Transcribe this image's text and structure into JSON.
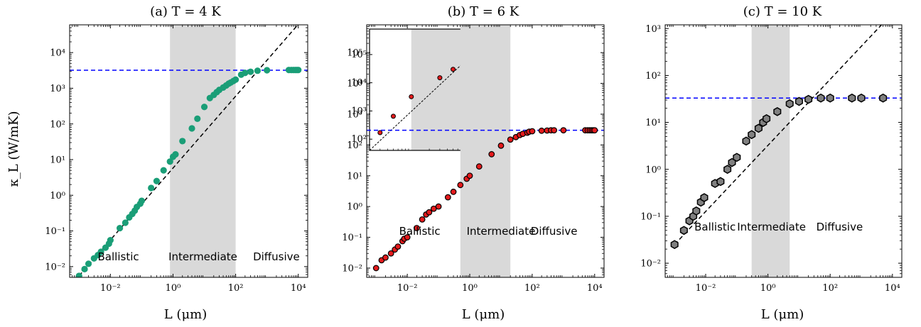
{
  "colors": {
    "panel_a_marker": "#1a9e77",
    "panel_b_marker": "#e31a1c",
    "panel_c_marker": "#808080",
    "marker_edge": "#000000",
    "ballistic_line": "#000000",
    "diffusive_line": "#0000ff",
    "intermediate_band": "#d9d9d9"
  },
  "chart_data": [
    {
      "type": "scatter",
      "panel": "a",
      "title": "(a) T = 4 K",
      "xlabel": "L (μm)",
      "ylabel": "κ_L (W/mK)",
      "xscale": "log",
      "yscale": "log",
      "xlim": [
        0.0005,
        20000
      ],
      "ylim": [
        0.005,
        60000
      ],
      "xticks": [
        {
          "v": 0.01,
          "label": "10⁻²"
        },
        {
          "v": 1,
          "label": "10⁰"
        },
        {
          "v": 100,
          "label": "10²"
        },
        {
          "v": 10000,
          "label": "10⁴"
        }
      ],
      "yticks": [
        {
          "v": 0.01,
          "label": "10⁻²"
        },
        {
          "v": 0.1,
          "label": "10⁻¹"
        },
        {
          "v": 1,
          "label": "10⁰"
        },
        {
          "v": 10,
          "label": "10¹"
        },
        {
          "v": 100,
          "label": "10²"
        },
        {
          "v": 1000,
          "label": "10³"
        },
        {
          "v": 10000,
          "label": "10⁴"
        }
      ],
      "marker": "circle",
      "band": [
        0.8,
        100
      ],
      "diffusive_level": 3200,
      "ballistic_line": [
        [
          0.001,
          0.0055
        ],
        [
          10000,
          62000
        ]
      ],
      "regions": [
        {
          "text": "Ballistic",
          "x": 0.018,
          "y": 0.015
        },
        {
          "text": "Intermediate",
          "x": 9,
          "y": 0.015
        },
        {
          "text": "Diffusive",
          "x": 2000,
          "y": 0.015
        }
      ],
      "points": [
        [
          0.001,
          0.0055
        ],
        [
          0.0015,
          0.0085
        ],
        [
          0.002,
          0.012
        ],
        [
          0.003,
          0.017
        ],
        [
          0.004,
          0.021
        ],
        [
          0.005,
          0.026
        ],
        [
          0.007,
          0.034
        ],
        [
          0.009,
          0.044
        ],
        [
          0.01,
          0.055
        ],
        [
          0.02,
          0.12
        ],
        [
          0.03,
          0.17
        ],
        [
          0.04,
          0.24
        ],
        [
          0.05,
          0.3
        ],
        [
          0.06,
          0.37
        ],
        [
          0.07,
          0.47
        ],
        [
          0.09,
          0.58
        ],
        [
          0.1,
          0.7
        ],
        [
          0.2,
          1.6
        ],
        [
          0.3,
          2.5
        ],
        [
          0.5,
          5.0
        ],
        [
          0.8,
          8.8
        ],
        [
          1,
          12
        ],
        [
          1.2,
          14
        ],
        [
          2,
          33
        ],
        [
          4,
          75
        ],
        [
          6,
          140
        ],
        [
          10,
          300
        ],
        [
          15,
          530
        ],
        [
          20,
          650
        ],
        [
          25,
          780
        ],
        [
          30,
          900
        ],
        [
          40,
          1050
        ],
        [
          50,
          1200
        ],
        [
          60,
          1350
        ],
        [
          70,
          1450
        ],
        [
          85,
          1600
        ],
        [
          100,
          1750
        ],
        [
          150,
          2400
        ],
        [
          200,
          2700
        ],
        [
          300,
          2900
        ],
        [
          500,
          3100
        ],
        [
          1000,
          3200
        ],
        [
          5000,
          3250
        ],
        [
          6000,
          3250
        ],
        [
          7000,
          3250
        ],
        [
          8000,
          3250
        ],
        [
          9000,
          3250
        ],
        [
          10000,
          3250
        ]
      ]
    },
    {
      "type": "scatter",
      "panel": "b",
      "title": "(b) T = 6 K",
      "xlabel": "L (μm)",
      "ylabel": "",
      "xscale": "log",
      "yscale": "log",
      "xlim": [
        0.0005,
        20000
      ],
      "ylim": [
        0.005,
        800000
      ],
      "xticks": [
        {
          "v": 0.01,
          "label": "10⁻²"
        },
        {
          "v": 1,
          "label": "10⁰"
        },
        {
          "v": 100,
          "label": "10²"
        },
        {
          "v": 10000,
          "label": "10⁴"
        }
      ],
      "yticks": [
        {
          "v": 0.01,
          "label": "10⁻²"
        },
        {
          "v": 0.1,
          "label": "10⁻¹"
        },
        {
          "v": 1,
          "label": "10⁰"
        },
        {
          "v": 10,
          "label": "10¹"
        },
        {
          "v": 100,
          "label": "10²"
        },
        {
          "v": 1000,
          "label": "10³"
        },
        {
          "v": 10000,
          "label": "10⁴"
        },
        {
          "v": 100000,
          "label": "10⁵"
        }
      ],
      "marker": "circle",
      "band": [
        0.5,
        20
      ],
      "diffusive_level": 300,
      "ballistic_line": null,
      "regions": [
        {
          "text": "Ballistic",
          "x": 0.025,
          "y": 0.12
        },
        {
          "text": "Intermediate",
          "x": 10,
          "y": 0.12
        },
        {
          "text": "Diffusive",
          "x": 500,
          "y": 0.12
        }
      ],
      "points": [
        [
          0.001,
          0.01
        ],
        [
          0.0015,
          0.018
        ],
        [
          0.002,
          0.022
        ],
        [
          0.003,
          0.03
        ],
        [
          0.004,
          0.04
        ],
        [
          0.005,
          0.05
        ],
        [
          0.007,
          0.075
        ],
        [
          0.008,
          0.09
        ],
        [
          0.01,
          0.1
        ],
        [
          0.02,
          0.2
        ],
        [
          0.03,
          0.38
        ],
        [
          0.04,
          0.55
        ],
        [
          0.05,
          0.65
        ],
        [
          0.07,
          0.85
        ],
        [
          0.1,
          1.0
        ],
        [
          0.2,
          2.0
        ],
        [
          0.3,
          3.0
        ],
        [
          0.5,
          5.0
        ],
        [
          0.8,
          8.0
        ],
        [
          1,
          10
        ],
        [
          2,
          20
        ],
        [
          5,
          50
        ],
        [
          10,
          95
        ],
        [
          20,
          150
        ],
        [
          30,
          180
        ],
        [
          40,
          210
        ],
        [
          50,
          230
        ],
        [
          70,
          250
        ],
        [
          80,
          270
        ],
        [
          100,
          280
        ],
        [
          200,
          290
        ],
        [
          300,
          295
        ],
        [
          400,
          300
        ],
        [
          500,
          300
        ],
        [
          1000,
          300
        ],
        [
          5000,
          300
        ],
        [
          6000,
          300
        ],
        [
          7000,
          300
        ],
        [
          8000,
          300
        ],
        [
          9000,
          300
        ],
        [
          10000,
          300
        ]
      ],
      "inset": {
        "xscale": "log",
        "yscale": "log",
        "xlim": [
          0.02,
          3
        ],
        "ylim": [
          40,
          800000
        ],
        "xticks": [
          {
            "v": 1,
            "label": "10⁰"
          }
        ],
        "yticks": [
          {
            "v": 100,
            "label": "10²"
          },
          {
            "v": 1000,
            "label": "10³"
          },
          {
            "v": 10000,
            "label": "10⁴"
          },
          {
            "v": 100000,
            "label": "10⁵"
          }
        ],
        "band": [
          0.1,
          1.7
        ],
        "line": [
          [
            0.02,
            40
          ],
          [
            3,
            800000
          ]
        ],
        "points": [
          [
            0.03,
            170
          ],
          [
            0.05,
            650
          ],
          [
            0.1,
            3200
          ],
          [
            0.3,
            15000
          ],
          [
            0.5,
            30000
          ],
          [
            2,
            270000
          ]
        ]
      }
    },
    {
      "type": "scatter",
      "panel": "c",
      "title": "(c) T = 10 K",
      "xlabel": "L (μm)",
      "ylabel": "",
      "xscale": "log",
      "yscale": "log",
      "xlim": [
        0.0005,
        20000
      ],
      "ylim": [
        0.005,
        1200
      ],
      "xticks": [
        {
          "v": 0.01,
          "label": "10⁻²"
        },
        {
          "v": 1,
          "label": "10⁰"
        },
        {
          "v": 100,
          "label": "10²"
        },
        {
          "v": 10000,
          "label": "10⁴"
        }
      ],
      "yticks": [
        {
          "v": 0.01,
          "label": "10⁻²"
        },
        {
          "v": 0.1,
          "label": "10⁻¹"
        },
        {
          "v": 1,
          "label": "10⁰"
        },
        {
          "v": 10,
          "label": "10¹"
        },
        {
          "v": 100,
          "label": "10²"
        },
        {
          "v": 1000,
          "label": "10³"
        }
      ],
      "marker": "hexagon",
      "band": [
        0.3,
        5
      ],
      "diffusive_level": 33,
      "ballistic_line": [
        [
          0.001,
          0.025
        ],
        [
          5000,
          1300
        ]
      ],
      "regions": [
        {
          "text": "Ballistic",
          "x": 0.02,
          "y": 0.05
        },
        {
          "text": "Intermediate",
          "x": 1.3,
          "y": 0.05
        },
        {
          "text": "Diffusive",
          "x": 200,
          "y": 0.05
        }
      ],
      "points": [
        [
          0.001,
          0.025
        ],
        [
          0.002,
          0.05
        ],
        [
          0.003,
          0.08
        ],
        [
          0.004,
          0.1
        ],
        [
          0.005,
          0.13
        ],
        [
          0.007,
          0.2
        ],
        [
          0.009,
          0.25
        ],
        [
          0.02,
          0.5
        ],
        [
          0.03,
          0.55
        ],
        [
          0.05,
          1.0
        ],
        [
          0.07,
          1.4
        ],
        [
          0.1,
          1.8
        ],
        [
          0.2,
          4.0
        ],
        [
          0.3,
          5.5
        ],
        [
          0.5,
          7.5
        ],
        [
          0.7,
          10
        ],
        [
          0.9,
          12
        ],
        [
          2,
          17
        ],
        [
          5,
          25
        ],
        [
          10,
          28
        ],
        [
          20,
          31
        ],
        [
          50,
          33
        ],
        [
          100,
          33
        ],
        [
          500,
          33
        ],
        [
          1000,
          33
        ],
        [
          5000,
          33
        ]
      ]
    }
  ]
}
